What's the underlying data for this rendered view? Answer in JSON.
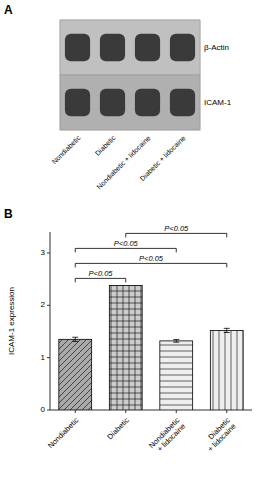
{
  "chart_data": [
    {
      "type": "blot",
      "title": "A",
      "categories": [
        "Nondiabetic",
        "Diabetic",
        "Nondiabetic + lidocaine",
        "Diabetic + lidocaine"
      ],
      "series": [
        {
          "name": "β-Actin"
        },
        {
          "name": "ICAM-1"
        }
      ],
      "color": "#3a3a3a"
    },
    {
      "type": "bar",
      "title": "B",
      "categories": [
        "Nondiabetic",
        "Diabetic",
        "Nondiabetic\n+ lidocaine",
        "Diabetic\n+ lidocaine"
      ],
      "values": [
        1.35,
        2.38,
        1.32,
        1.52
      ],
      "errors": [
        0.04,
        0.0,
        0.025,
        0.04
      ],
      "colors": [
        "#aaaaaa",
        "#cccccc",
        "#eeeeee",
        "#eeeeee"
      ],
      "ylabel": "ICAM-1 expression",
      "ylim": [
        0,
        3.4
      ],
      "yticks": [
        0,
        1,
        2,
        3
      ],
      "grid": false,
      "annotations": [
        {
          "text": "P<0.05",
          "from": 0,
          "to": 1
        },
        {
          "text": "P<0.05",
          "from": 0,
          "to": 3
        },
        {
          "text": "P<0.05",
          "from": 0,
          "to": 2
        },
        {
          "text": "P<0.05",
          "from": 1,
          "to": 3
        }
      ]
    }
  ]
}
